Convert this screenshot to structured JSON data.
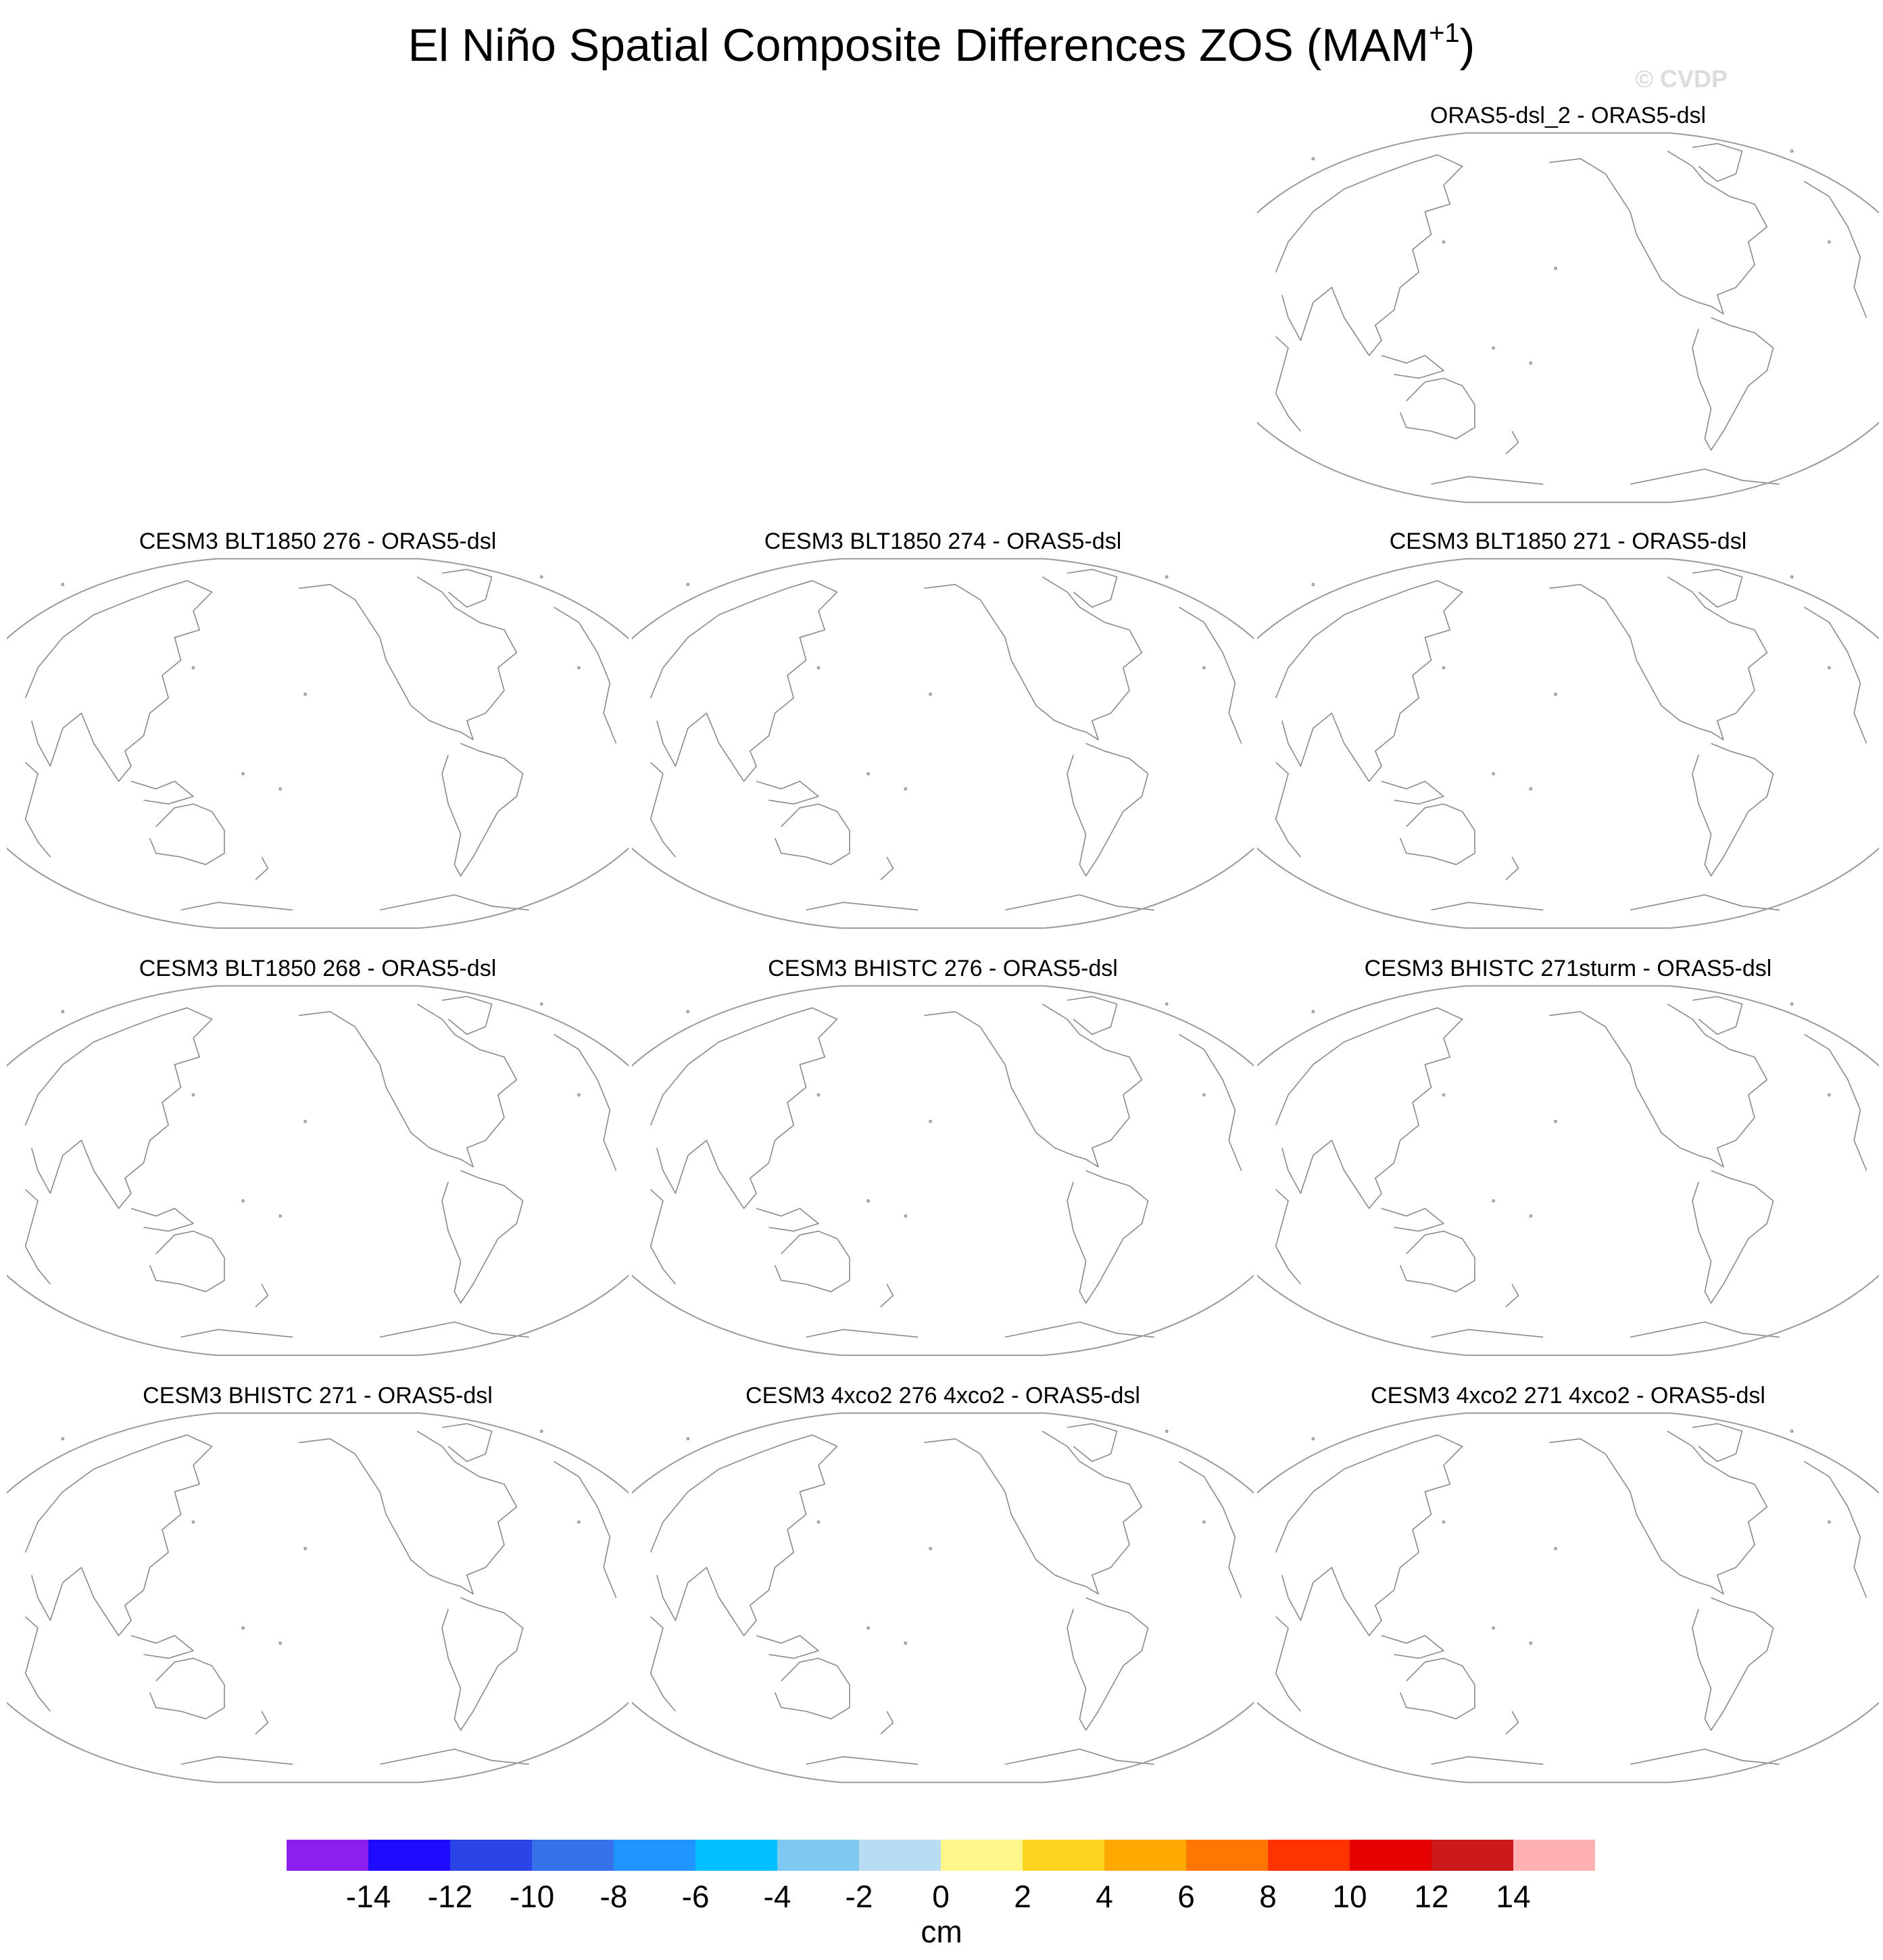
{
  "title": {
    "main": "El Niño Spatial Composite Differences ZOS (MAM",
    "sup": "+1",
    "close": ")"
  },
  "watermark": "© CVDP",
  "panels": [
    {
      "title": "ORAS5-dsl_2 - ORAS5-dsl",
      "row": 0,
      "col": 2
    },
    {
      "title": "CESM3 BLT1850 276 - ORAS5-dsl",
      "row": 1,
      "col": 0
    },
    {
      "title": "CESM3 BLT1850 274 - ORAS5-dsl",
      "row": 1,
      "col": 1
    },
    {
      "title": "CESM3 BLT1850 271 - ORAS5-dsl",
      "row": 1,
      "col": 2
    },
    {
      "title": "CESM3 BLT1850 268 - ORAS5-dsl",
      "row": 2,
      "col": 0
    },
    {
      "title": "CESM3 BHISTC 276 - ORAS5-dsl",
      "row": 2,
      "col": 1
    },
    {
      "title": "CESM3 BHISTC 271sturm - ORAS5-dsl",
      "row": 2,
      "col": 2
    },
    {
      "title": "CESM3 BHISTC 271 - ORAS5-dsl",
      "row": 3,
      "col": 0
    },
    {
      "title": "CESM3 4xco2 276 4xco2 - ORAS5-dsl",
      "row": 3,
      "col": 1
    },
    {
      "title": "CESM3 4xco2 271 4xco2 - ORAS5-dsl",
      "row": 3,
      "col": 2
    }
  ],
  "colorbar": {
    "colors": [
      "#8a1ff0",
      "#1f0bff",
      "#2a44e8",
      "#3572ea",
      "#1f95ff",
      "#00c0ff",
      "#7dc9f0",
      "#b8ddf2",
      "#fff78a",
      "#ffd41f",
      "#ffa900",
      "#ff7700",
      "#ff3300",
      "#e60000",
      "#cc1a1a",
      "#ffb0b0"
    ],
    "ticks": [
      "-14",
      "-12",
      "-10",
      "-8",
      "-6",
      "-4",
      "-2",
      "0",
      "2",
      "4",
      "6",
      "8",
      "10",
      "12",
      "14"
    ],
    "units": "cm"
  },
  "map_style": {
    "coast_color": "#8a8a8a",
    "border_color": "#9a9a9a"
  }
}
